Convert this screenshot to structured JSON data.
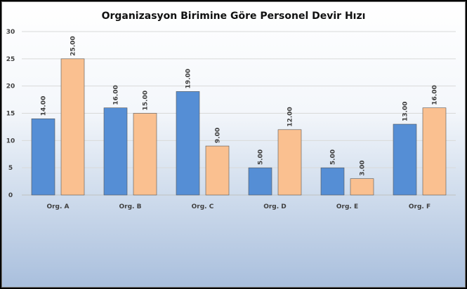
{
  "chart_data": {
    "type": "bar",
    "title": "Organizasyon Birimine Göre Personel Devir Hızı",
    "xlabel": "",
    "ylabel": "",
    "categories": [
      "Org. A",
      "Org. B",
      "Org. C",
      "Org. D",
      "Org. E",
      "Org. F"
    ],
    "series": [
      {
        "values": [
          14,
          16,
          19,
          5,
          5,
          13
        ],
        "labels": [
          "14.00",
          "16.00",
          "19.00",
          "5.00",
          "5.00",
          "13.00"
        ],
        "color": "#558ed5"
      },
      {
        "values": [
          25,
          15,
          9,
          12,
          3,
          16
        ],
        "labels": [
          "25.00",
          "15.00",
          "9.00",
          "12.00",
          "3.00",
          "16.00"
        ],
        "color": "#fac090"
      }
    ],
    "ylim": [
      0,
      30
    ],
    "yticks": [
      0,
      5,
      10,
      15,
      20,
      25,
      30
    ],
    "grid": true,
    "legend": "none"
  }
}
